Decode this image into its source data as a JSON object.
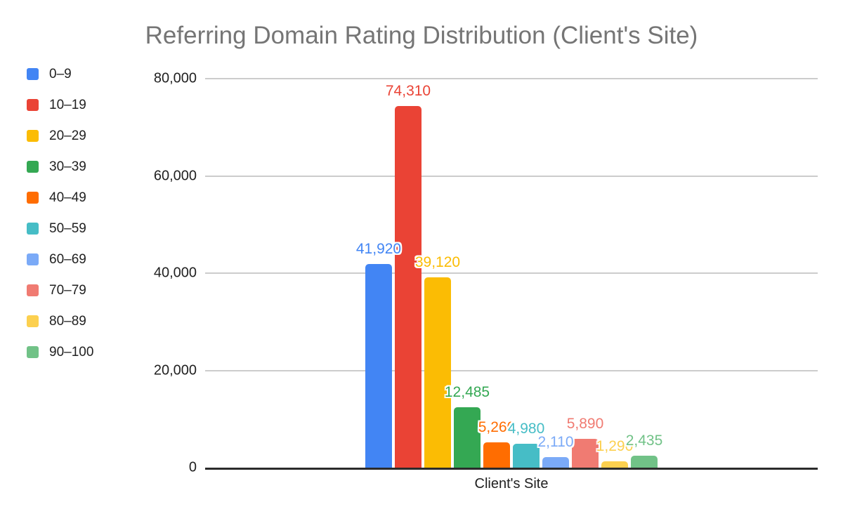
{
  "chart_data": {
    "type": "bar",
    "title": "Referring Domain Rating Distribution (Client's Site)",
    "title_color": "#757575",
    "categories": [
      "Client's Site"
    ],
    "series": [
      {
        "name": "0–9",
        "value": 41920,
        "label": "41,920",
        "color": "#4285F4"
      },
      {
        "name": "10–19",
        "value": 74310,
        "label": "74,310",
        "color": "#EA4335"
      },
      {
        "name": "20–29",
        "value": 39120,
        "label": "39,120",
        "color": "#FBBC04"
      },
      {
        "name": "30–39",
        "value": 12485,
        "label": "12,485",
        "color": "#34A853"
      },
      {
        "name": "40–49",
        "value": 5260,
        "label": "5,260",
        "color": "#FF6D01"
      },
      {
        "name": "50–59",
        "value": 4980,
        "label": "4,980",
        "color": "#46BDC6"
      },
      {
        "name": "60–69",
        "value": 2110,
        "label": "2,110",
        "color": "#7BAAF7"
      },
      {
        "name": "70–79",
        "value": 5890,
        "label": "5,890",
        "color": "#F07B72"
      },
      {
        "name": "80–89",
        "value": 1290,
        "label": "1,290",
        "color": "#FCD04F"
      },
      {
        "name": "90–100",
        "value": 2435,
        "label": "2,435",
        "color": "#71C287"
      }
    ],
    "ylim": [
      0,
      80000
    ],
    "yticks": [
      {
        "value": 0,
        "label": "0"
      },
      {
        "value": 20000,
        "label": "20,000"
      },
      {
        "value": 40000,
        "label": "40,000"
      },
      {
        "value": 60000,
        "label": "60,000"
      },
      {
        "value": 80000,
        "label": "80,000"
      }
    ],
    "xlabel": "Client's Site",
    "legend_position": "left",
    "grid": true,
    "axis_line_color": "#2b2b2b",
    "gridline_color": "#cccccc"
  }
}
